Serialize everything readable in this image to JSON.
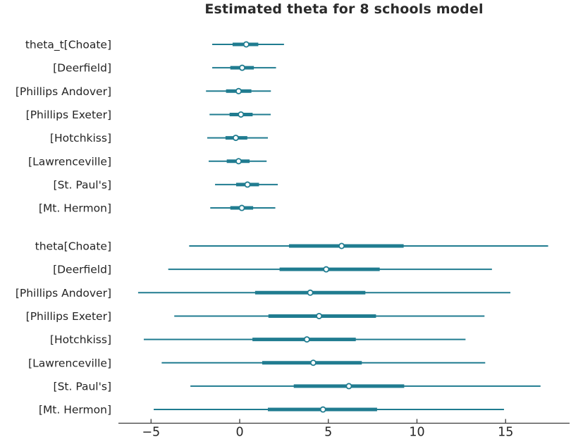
{
  "chart_data": {
    "type": "forest",
    "title": "Estimated theta for 8 schools model",
    "xlabel": "",
    "grid": false,
    "legend_position": "none",
    "xlim": [
      -6.84,
      18.61
    ],
    "xticks": [
      {
        "value": -5,
        "label": "−5"
      },
      {
        "value": 0,
        "label": "0"
      },
      {
        "value": 5,
        "label": "5"
      },
      {
        "value": 10,
        "label": "10"
      },
      {
        "value": 15,
        "label": "15"
      }
    ],
    "colors": {
      "interval": "#207c90",
      "median_fill": "#ffffff",
      "axis": "#3a3a3a",
      "text": "#262626",
      "title": "#2b2b2b"
    },
    "groups": [
      {
        "rows": [
          {
            "label": "theta_t[Choate]",
            "outer": [
              -1.55,
              2.5
            ],
            "inner": [
              -0.4,
              1.05
            ],
            "median": 0.37
          },
          {
            "label": "[Deerfield]",
            "outer": [
              -1.55,
              2.05
            ],
            "inner": [
              -0.53,
              0.8
            ],
            "median": 0.14
          },
          {
            "label": "[Phillips Andover]",
            "outer": [
              -1.9,
              1.76
            ],
            "inner": [
              -0.77,
              0.66
            ],
            "median": -0.06
          },
          {
            "label": "[Phillips Exeter]",
            "outer": [
              -1.7,
              1.75
            ],
            "inner": [
              -0.57,
              0.73
            ],
            "median": 0.07
          },
          {
            "label": "[Hotchkiss]",
            "outer": [
              -1.83,
              1.59
            ],
            "inner": [
              -0.8,
              0.43
            ],
            "median": -0.22
          },
          {
            "label": "[Lawrenceville]",
            "outer": [
              -1.75,
              1.52
            ],
            "inner": [
              -0.73,
              0.56
            ],
            "median": -0.06
          },
          {
            "label": "[St. Paul's]",
            "outer": [
              -1.39,
              2.15
            ],
            "inner": [
              -0.2,
              1.09
            ],
            "median": 0.44
          },
          {
            "label": "[Mt. Hermon]",
            "outer": [
              -1.66,
              2.01
            ],
            "inner": [
              -0.53,
              0.76
            ],
            "median": 0.12
          }
        ]
      },
      {
        "rows": [
          {
            "label": "theta[Choate]",
            "outer": [
              -2.85,
              17.4
            ],
            "inner": [
              2.78,
              9.25
            ],
            "median": 5.75
          },
          {
            "label": "[Deerfield]",
            "outer": [
              -4.03,
              14.23
            ],
            "inner": [
              2.25,
              7.9
            ],
            "median": 4.88
          },
          {
            "label": "[Phillips Andover]",
            "outer": [
              -5.73,
              15.27
            ],
            "inner": [
              0.87,
              7.09
            ],
            "median": 3.98
          },
          {
            "label": "[Phillips Exeter]",
            "outer": [
              -3.69,
              13.81
            ],
            "inner": [
              1.62,
              7.69
            ],
            "median": 4.48
          },
          {
            "label": "[Hotchkiss]",
            "outer": [
              -5.41,
              12.74
            ],
            "inner": [
              0.72,
              6.55
            ],
            "median": 3.79
          },
          {
            "label": "[Lawrenceville]",
            "outer": [
              -4.4,
              13.85
            ],
            "inner": [
              1.27,
              6.89
            ],
            "median": 4.15
          },
          {
            "label": "[St. Paul's]",
            "outer": [
              -2.78,
              16.97
            ],
            "inner": [
              3.05,
              9.28
            ],
            "median": 6.16
          },
          {
            "label": "[Mt. Hermon]",
            "outer": [
              -4.85,
              14.91
            ],
            "inner": [
              1.59,
              7.75
            ],
            "median": 4.7
          }
        ]
      }
    ]
  }
}
